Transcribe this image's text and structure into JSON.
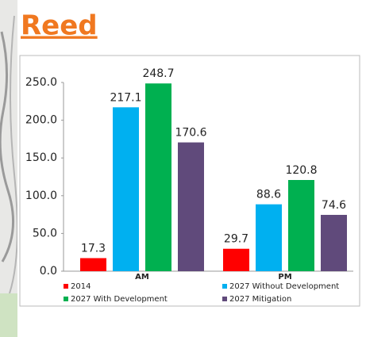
{
  "header": {
    "title": "Reed"
  },
  "chart_data": {
    "type": "bar",
    "categories": [
      "AM",
      "PM"
    ],
    "series": [
      {
        "name": "2014",
        "color": "#ff0000",
        "values": [
          17.3,
          29.7
        ]
      },
      {
        "name": "2027 Without Development",
        "color": "#00b0f0",
        "values": [
          217.1,
          88.6
        ]
      },
      {
        "name": "2027 With Development",
        "color": "#00b050",
        "values": [
          248.7,
          120.8
        ]
      },
      {
        "name": "2027 Mitigation",
        "color": "#604a7b",
        "values": [
          170.6,
          74.6
        ]
      }
    ],
    "ylim": [
      0,
      250
    ],
    "yticks": [
      {
        "value": 0,
        "label": "0.0"
      },
      {
        "value": 50,
        "label": "50.0"
      },
      {
        "value": 100,
        "label": "100.0"
      },
      {
        "value": 150,
        "label": "150.0"
      },
      {
        "value": 200,
        "label": "200.0"
      },
      {
        "value": 250,
        "label": "250.0"
      }
    ],
    "legend": "bottom"
  }
}
